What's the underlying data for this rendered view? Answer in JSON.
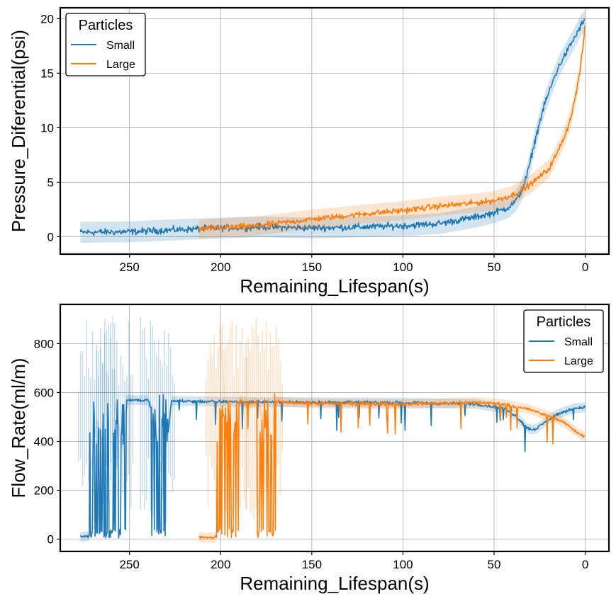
{
  "chart_data": [
    {
      "type": "line",
      "xlabel": "Remaining_Lifespan(s)",
      "ylabel": "Pressure_Diferential(psi)",
      "xlim": [
        288,
        -13
      ],
      "ylim": [
        -1.6,
        21
      ],
      "x_inverted": true,
      "xticks": [
        250,
        200,
        150,
        100,
        50,
        0
      ],
      "yticks": [
        0,
        5,
        10,
        15,
        20
      ],
      "grid": true,
      "legend": {
        "title": "Particles",
        "placement": "top-left"
      },
      "series": [
        {
          "name": "Small",
          "color": "#1f77b4",
          "noise": 0.45,
          "x": [
            277,
            250,
            215,
            180,
            150,
            120,
            100,
            80,
            60,
            50,
            42,
            38,
            35,
            32,
            30,
            28,
            25,
            22,
            20,
            17,
            14,
            10,
            5,
            2,
            0
          ],
          "y": [
            0.4,
            0.45,
            0.7,
            0.9,
            0.8,
            0.9,
            1.0,
            1.2,
            1.8,
            2.2,
            2.7,
            3.3,
            4.2,
            5.6,
            7.0,
            8.5,
            10.5,
            12.3,
            13.2,
            14.6,
            15.8,
            17.0,
            18.5,
            19.5,
            19.8
          ]
        },
        {
          "name": "Large",
          "color": "#ff7f0e",
          "noise": 0.4,
          "x": [
            212,
            180,
            150,
            120,
            100,
            80,
            60,
            50,
            40,
            30,
            20,
            15,
            10,
            7,
            5,
            3,
            1,
            0
          ],
          "y": [
            0.7,
            1.0,
            1.6,
            2.1,
            2.4,
            2.8,
            3.1,
            3.3,
            3.8,
            4.8,
            6.2,
            7.8,
            9.8,
            11.5,
            13.2,
            15.0,
            17.8,
            19.5
          ]
        }
      ]
    },
    {
      "type": "line",
      "xlabel": "Remaining_Lifespan(s)",
      "ylabel": "Flow_Rate(ml/m)",
      "xlim": [
        288,
        -13
      ],
      "ylim": [
        -50,
        960
      ],
      "x_inverted": true,
      "xticks": [
        250,
        200,
        150,
        100,
        50,
        0
      ],
      "yticks": [
        0,
        200,
        400,
        600,
        800
      ],
      "grid": true,
      "legend": {
        "title": "Particles",
        "placement": "top-right"
      },
      "series": [
        {
          "name": "Small",
          "color": "#1f77b4",
          "noise": 8,
          "x": [
            277,
            272,
            271,
            268,
            264,
            261,
            258,
            254,
            252,
            240,
            236,
            233,
            229,
            227,
            220,
            200,
            150,
            100,
            60,
            45,
            38,
            32,
            29,
            26,
            22,
            17,
            12,
            6,
            0
          ],
          "y": [
            10,
            12,
            300,
            480,
            360,
            120,
            560,
            380,
            570,
            568,
            500,
            290,
            420,
            565,
            565,
            562,
            560,
            558,
            553,
            535,
            505,
            455,
            448,
            455,
            480,
            505,
            520,
            535,
            540
          ],
          "bursts": [
            [
              262,
              272
            ],
            [
              252,
              262
            ],
            [
              229,
              238
            ]
          ]
        },
        {
          "name": "Large",
          "color": "#ff7f0e",
          "noise": 8,
          "x": [
            212,
            204,
            202,
            201,
            195,
            190,
            189,
            185,
            180,
            175,
            171,
            170,
            165,
            150,
            120,
            100,
            60,
            45,
            38,
            30,
            25,
            20,
            15,
            10,
            5,
            2,
            0
          ],
          "y": [
            8,
            6,
            10,
            900,
            300,
            560,
            570,
            550,
            560,
            460,
            380,
            565,
            560,
            555,
            553,
            552,
            560,
            552,
            542,
            530,
            515,
            505,
            490,
            470,
            440,
            425,
            420
          ],
          "bursts": [
            [
              190,
              202
            ],
            [
              170,
              180
            ]
          ]
        }
      ]
    }
  ]
}
